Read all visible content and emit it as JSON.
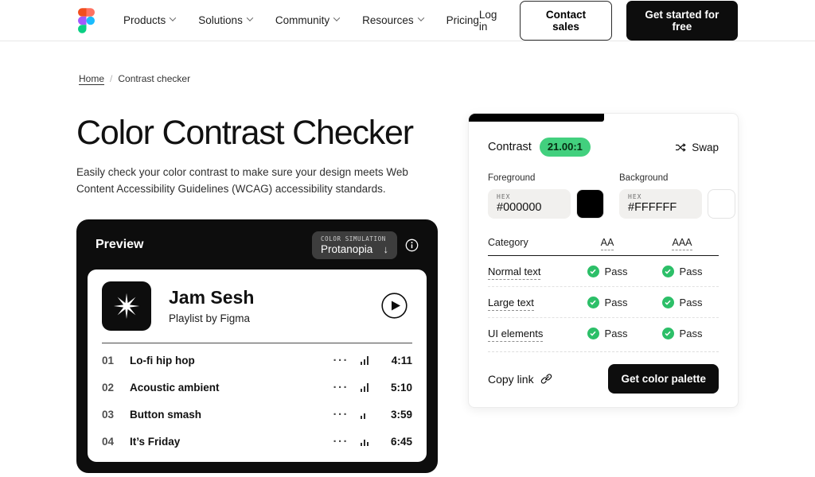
{
  "nav": {
    "items": [
      {
        "label": "Products",
        "dropdown": true
      },
      {
        "label": "Solutions",
        "dropdown": true
      },
      {
        "label": "Community",
        "dropdown": true
      },
      {
        "label": "Resources",
        "dropdown": true
      },
      {
        "label": "Pricing",
        "dropdown": false
      }
    ],
    "login_label": "Log in",
    "contact_sales_label": "Contact sales",
    "get_started_label": "Get started for free"
  },
  "breadcrumb": {
    "home": "Home",
    "separator": "/",
    "current": "Contrast checker"
  },
  "hero": {
    "title": "Color Contrast Checker",
    "description": "Easily check your color contrast to make sure your design meets Web Content Accessibility Guidelines (WCAG) accessibility standards."
  },
  "preview": {
    "title": "Preview",
    "color_simulation_label": "COLOR SIMULATION",
    "color_simulation_value": "Protanopia",
    "dropdown_arrow": "↓",
    "player": {
      "title": "Jam Sesh",
      "subtitle": "Playlist by Figma",
      "dots": "···",
      "tracks": [
        {
          "number": "01",
          "title": "Lo-fi hip hop",
          "duration": "4:11",
          "bars": [
            4,
            7,
            11
          ]
        },
        {
          "number": "02",
          "title": "Acoustic ambient",
          "duration": "5:10",
          "bars": [
            4,
            7,
            11
          ]
        },
        {
          "number": "03",
          "title": "Button smash",
          "duration": "3:59",
          "bars": [
            4,
            7
          ]
        },
        {
          "number": "04",
          "title": "It’s Friday",
          "duration": "6:45",
          "bars": [
            4,
            8,
            5
          ]
        }
      ]
    }
  },
  "checker": {
    "contrast_label": "Contrast",
    "contrast_ratio": "21.00:1",
    "swap_label": "Swap",
    "foreground": {
      "label": "Foreground",
      "format": "HEX",
      "value": "#000000",
      "swatch": "#000000"
    },
    "background": {
      "label": "Background",
      "format": "HEX",
      "value": "#FFFFFF",
      "swatch": "#FFFFFF"
    },
    "table": {
      "headers": {
        "category": "Category",
        "aa": "AA",
        "aaa": "AAA"
      },
      "rows": [
        {
          "category": "Normal text",
          "aa": "Pass",
          "aaa": "Pass"
        },
        {
          "category": "Large text",
          "aa": "Pass",
          "aaa": "Pass"
        },
        {
          "category": "UI elements",
          "aa": "Pass",
          "aaa": "Pass"
        }
      ]
    },
    "copy_link_label": "Copy link",
    "palette_button_label": "Get color palette"
  },
  "colors": {
    "ratio_pill_bg": "#42d07e",
    "pass_dot": "#2cbf68",
    "accent_black": "#0d0d0d"
  }
}
